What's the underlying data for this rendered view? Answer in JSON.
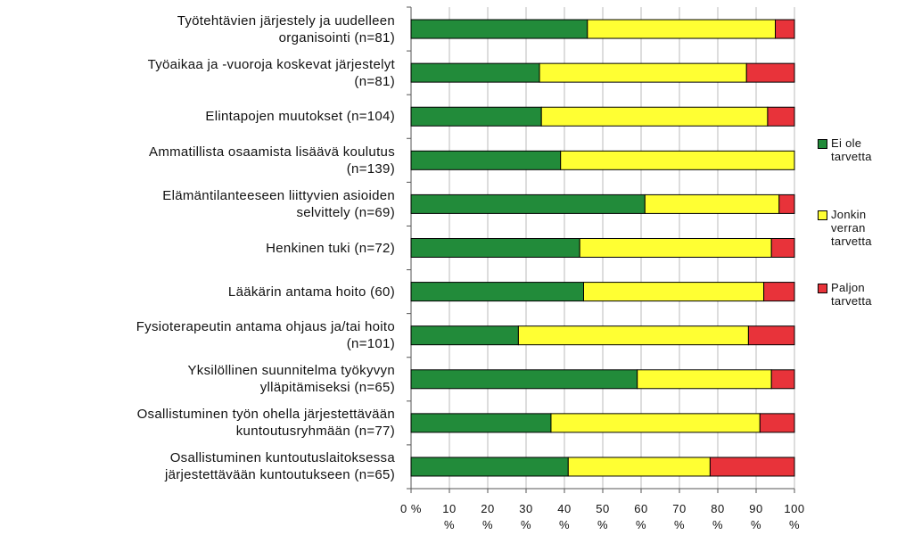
{
  "chart_data": {
    "type": "stacked-barh",
    "categories": [
      "Työtehtävien järjestely ja uudelleen\norganisointi (n=81)",
      "Työaikaa ja -vuoroja koskevat järjestelyt\n(n=81)",
      "Elintapojen muutokset (n=104)",
      "Ammatillista osaamista lisäävä koulutus\n(n=139)",
      "Elämäntilanteeseen liittyvien asioiden\nselvittely (n=69)",
      "Henkinen tuki (n=72)",
      "Lääkärin antama hoito (60)",
      "Fysioterapeutin antama ohjaus ja/tai hoito\n(n=101)",
      "Yksilöllinen suunnitelma työkyvyn\nylläpitämiseksi (n=65)",
      "Osallistuminen työn ohella järjestettävään\nkuntoutusryhmään (n=77)",
      "Osallistuminen kuntoutuslaitoksessa\njärjestettävään kuntoutukseen (n=65)"
    ],
    "series": [
      {
        "name": "Ei ole tarvetta",
        "color": "#228b3a",
        "values": [
          46,
          33.5,
          34,
          39,
          61,
          44,
          45,
          28,
          59,
          36.5,
          41
        ]
      },
      {
        "name": "Jonkin verran tarvetta",
        "color": "#ffff33",
        "values": [
          49,
          54,
          59,
          61,
          35,
          50,
          47,
          60,
          35,
          54.5,
          37
        ]
      },
      {
        "name": "Paljon tarvetta",
        "color": "#e8333a",
        "values": [
          5,
          12.5,
          7,
          0,
          4,
          6,
          8,
          12,
          6,
          9,
          22
        ]
      }
    ],
    "xlim": [
      0,
      100
    ],
    "xticks": [
      {
        "value": 0,
        "label": "0 %"
      },
      {
        "value": 10,
        "label": "10 %"
      },
      {
        "value": 20,
        "label": "20 %"
      },
      {
        "value": 30,
        "label": "30 %"
      },
      {
        "value": 40,
        "label": "40 %"
      },
      {
        "value": 50,
        "label": "50 %"
      },
      {
        "value": 60,
        "label": "60 %"
      },
      {
        "value": 70,
        "label": "70 %"
      },
      {
        "value": 80,
        "label": "80 %"
      },
      {
        "value": 90,
        "label": "90 %"
      },
      {
        "value": 100,
        "label": "100 %"
      }
    ],
    "grid": true,
    "legend": "right"
  }
}
